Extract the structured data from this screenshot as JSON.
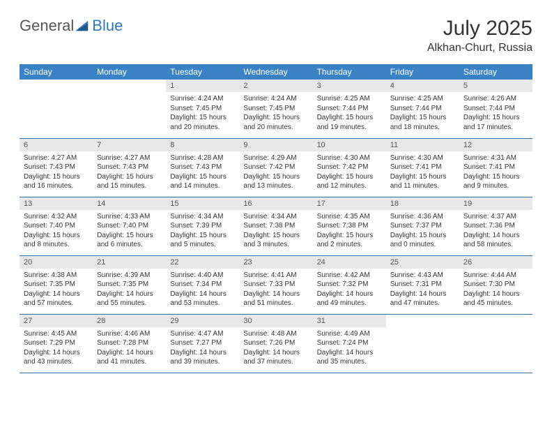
{
  "logo": {
    "text1": "General",
    "text2": "Blue"
  },
  "header": {
    "month": "July 2025",
    "location": "Alkhan-Churt, Russia"
  },
  "colors": {
    "header_bg": "#3b82c4",
    "header_text": "#ffffff",
    "daynum_bg": "#e8e8e8",
    "rule": "#2f6fa8",
    "logo_blue": "#2f79bd"
  },
  "dayNames": [
    "Sunday",
    "Monday",
    "Tuesday",
    "Wednesday",
    "Thursday",
    "Friday",
    "Saturday"
  ],
  "weeks": [
    [
      null,
      null,
      {
        "n": "1",
        "sunrise": "Sunrise: 4:24 AM",
        "sunset": "Sunset: 7:45 PM",
        "daylight": "Daylight: 15 hours and 20 minutes."
      },
      {
        "n": "2",
        "sunrise": "Sunrise: 4:24 AM",
        "sunset": "Sunset: 7:45 PM",
        "daylight": "Daylight: 15 hours and 20 minutes."
      },
      {
        "n": "3",
        "sunrise": "Sunrise: 4:25 AM",
        "sunset": "Sunset: 7:44 PM",
        "daylight": "Daylight: 15 hours and 19 minutes."
      },
      {
        "n": "4",
        "sunrise": "Sunrise: 4:25 AM",
        "sunset": "Sunset: 7:44 PM",
        "daylight": "Daylight: 15 hours and 18 minutes."
      },
      {
        "n": "5",
        "sunrise": "Sunrise: 4:26 AM",
        "sunset": "Sunset: 7:44 PM",
        "daylight": "Daylight: 15 hours and 17 minutes."
      }
    ],
    [
      {
        "n": "6",
        "sunrise": "Sunrise: 4:27 AM",
        "sunset": "Sunset: 7:43 PM",
        "daylight": "Daylight: 15 hours and 16 minutes."
      },
      {
        "n": "7",
        "sunrise": "Sunrise: 4:27 AM",
        "sunset": "Sunset: 7:43 PM",
        "daylight": "Daylight: 15 hours and 15 minutes."
      },
      {
        "n": "8",
        "sunrise": "Sunrise: 4:28 AM",
        "sunset": "Sunset: 7:43 PM",
        "daylight": "Daylight: 15 hours and 14 minutes."
      },
      {
        "n": "9",
        "sunrise": "Sunrise: 4:29 AM",
        "sunset": "Sunset: 7:42 PM",
        "daylight": "Daylight: 15 hours and 13 minutes."
      },
      {
        "n": "10",
        "sunrise": "Sunrise: 4:30 AM",
        "sunset": "Sunset: 7:42 PM",
        "daylight": "Daylight: 15 hours and 12 minutes."
      },
      {
        "n": "11",
        "sunrise": "Sunrise: 4:30 AM",
        "sunset": "Sunset: 7:41 PM",
        "daylight": "Daylight: 15 hours and 11 minutes."
      },
      {
        "n": "12",
        "sunrise": "Sunrise: 4:31 AM",
        "sunset": "Sunset: 7:41 PM",
        "daylight": "Daylight: 15 hours and 9 minutes."
      }
    ],
    [
      {
        "n": "13",
        "sunrise": "Sunrise: 4:32 AM",
        "sunset": "Sunset: 7:40 PM",
        "daylight": "Daylight: 15 hours and 8 minutes."
      },
      {
        "n": "14",
        "sunrise": "Sunrise: 4:33 AM",
        "sunset": "Sunset: 7:40 PM",
        "daylight": "Daylight: 15 hours and 6 minutes."
      },
      {
        "n": "15",
        "sunrise": "Sunrise: 4:34 AM",
        "sunset": "Sunset: 7:39 PM",
        "daylight": "Daylight: 15 hours and 5 minutes."
      },
      {
        "n": "16",
        "sunrise": "Sunrise: 4:34 AM",
        "sunset": "Sunset: 7:38 PM",
        "daylight": "Daylight: 15 hours and 3 minutes."
      },
      {
        "n": "17",
        "sunrise": "Sunrise: 4:35 AM",
        "sunset": "Sunset: 7:38 PM",
        "daylight": "Daylight: 15 hours and 2 minutes."
      },
      {
        "n": "18",
        "sunrise": "Sunrise: 4:36 AM",
        "sunset": "Sunset: 7:37 PM",
        "daylight": "Daylight: 15 hours and 0 minutes."
      },
      {
        "n": "19",
        "sunrise": "Sunrise: 4:37 AM",
        "sunset": "Sunset: 7:36 PM",
        "daylight": "Daylight: 14 hours and 58 minutes."
      }
    ],
    [
      {
        "n": "20",
        "sunrise": "Sunrise: 4:38 AM",
        "sunset": "Sunset: 7:35 PM",
        "daylight": "Daylight: 14 hours and 57 minutes."
      },
      {
        "n": "21",
        "sunrise": "Sunrise: 4:39 AM",
        "sunset": "Sunset: 7:35 PM",
        "daylight": "Daylight: 14 hours and 55 minutes."
      },
      {
        "n": "22",
        "sunrise": "Sunrise: 4:40 AM",
        "sunset": "Sunset: 7:34 PM",
        "daylight": "Daylight: 14 hours and 53 minutes."
      },
      {
        "n": "23",
        "sunrise": "Sunrise: 4:41 AM",
        "sunset": "Sunset: 7:33 PM",
        "daylight": "Daylight: 14 hours and 51 minutes."
      },
      {
        "n": "24",
        "sunrise": "Sunrise: 4:42 AM",
        "sunset": "Sunset: 7:32 PM",
        "daylight": "Daylight: 14 hours and 49 minutes."
      },
      {
        "n": "25",
        "sunrise": "Sunrise: 4:43 AM",
        "sunset": "Sunset: 7:31 PM",
        "daylight": "Daylight: 14 hours and 47 minutes."
      },
      {
        "n": "26",
        "sunrise": "Sunrise: 4:44 AM",
        "sunset": "Sunset: 7:30 PM",
        "daylight": "Daylight: 14 hours and 45 minutes."
      }
    ],
    [
      {
        "n": "27",
        "sunrise": "Sunrise: 4:45 AM",
        "sunset": "Sunset: 7:29 PM",
        "daylight": "Daylight: 14 hours and 43 minutes."
      },
      {
        "n": "28",
        "sunrise": "Sunrise: 4:46 AM",
        "sunset": "Sunset: 7:28 PM",
        "daylight": "Daylight: 14 hours and 41 minutes."
      },
      {
        "n": "29",
        "sunrise": "Sunrise: 4:47 AM",
        "sunset": "Sunset: 7:27 PM",
        "daylight": "Daylight: 14 hours and 39 minutes."
      },
      {
        "n": "30",
        "sunrise": "Sunrise: 4:48 AM",
        "sunset": "Sunset: 7:26 PM",
        "daylight": "Daylight: 14 hours and 37 minutes."
      },
      {
        "n": "31",
        "sunrise": "Sunrise: 4:49 AM",
        "sunset": "Sunset: 7:24 PM",
        "daylight": "Daylight: 14 hours and 35 minutes."
      },
      null,
      null
    ]
  ]
}
